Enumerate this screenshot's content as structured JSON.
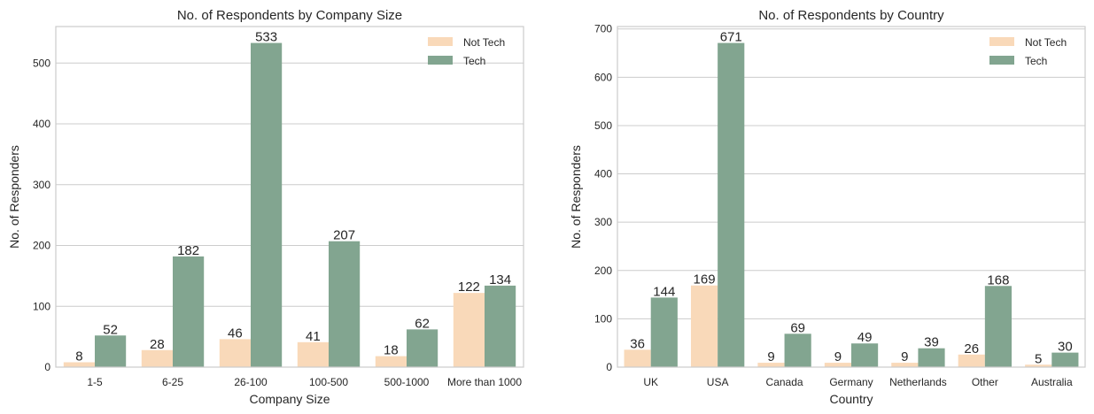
{
  "colors": {
    "not_tech": "#f9d9b9",
    "tech": "#82a590"
  },
  "chart_data": [
    {
      "type": "bar",
      "title": "No. of Respondents by Company Size",
      "xlabel": "Company Size",
      "ylabel": "No. of Responders",
      "categories": [
        "1-5",
        "6-25",
        "26-100",
        "100-500",
        "500-1000",
        "More than 1000"
      ],
      "series": [
        {
          "name": "Not Tech",
          "values": [
            8,
            28,
            46,
            41,
            18,
            122
          ]
        },
        {
          "name": "Tech",
          "values": [
            52,
            182,
            533,
            207,
            62,
            134
          ]
        }
      ],
      "yticks": [
        0,
        100,
        200,
        300,
        400,
        500
      ],
      "ylim": [
        0,
        560
      ],
      "grid": true,
      "legend": "top-right"
    },
    {
      "type": "bar",
      "title": "No. of Respondents by Country",
      "xlabel": "Country",
      "ylabel": "No. of Responders",
      "categories": [
        "UK",
        "USA",
        "Canada",
        "Germany",
        "Netherlands",
        "Other",
        "Australia"
      ],
      "series": [
        {
          "name": "Not Tech",
          "values": [
            36,
            169,
            9,
            9,
            9,
            26,
            5
          ]
        },
        {
          "name": "Tech",
          "values": [
            144,
            671,
            69,
            49,
            39,
            168,
            30
          ]
        }
      ],
      "yticks": [
        0,
        100,
        200,
        300,
        400,
        500,
        600,
        700
      ],
      "ylim": [
        0,
        705
      ],
      "grid": true,
      "legend": "top-right"
    }
  ]
}
